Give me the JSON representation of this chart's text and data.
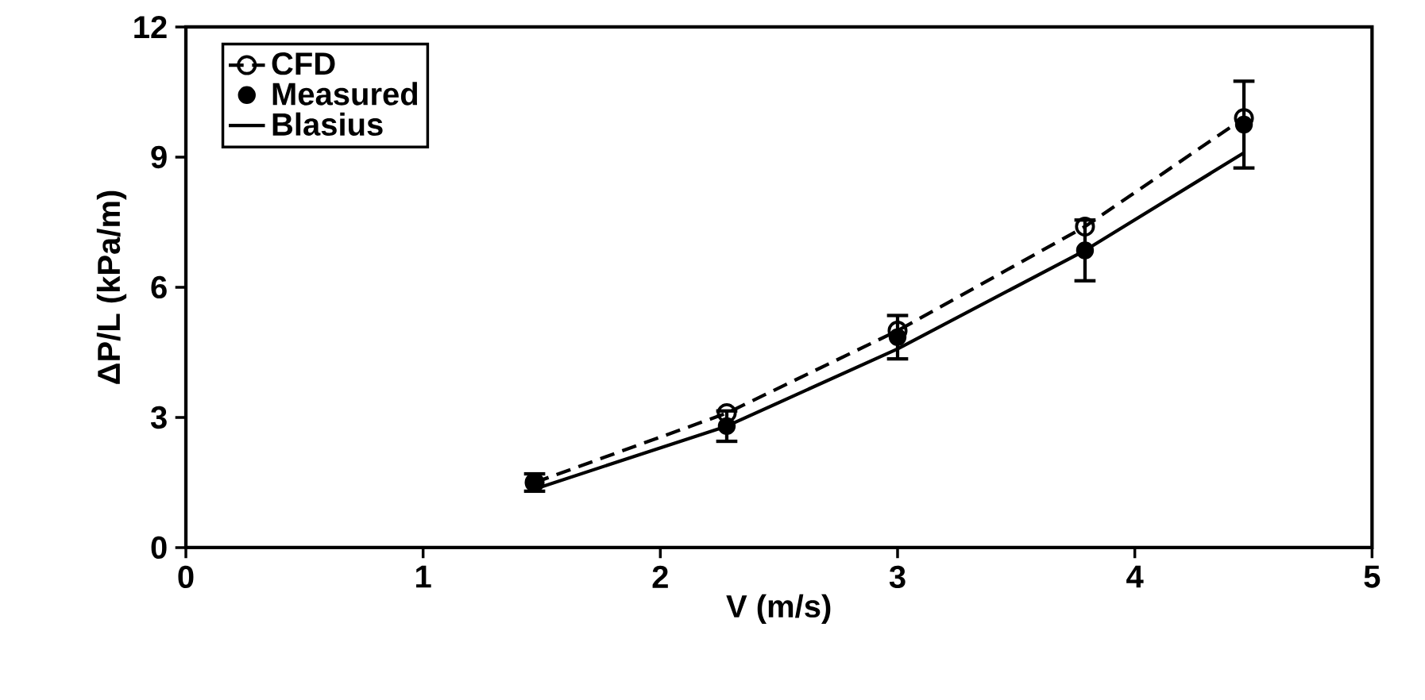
{
  "chart_data": {
    "type": "line",
    "xlabel": "V (m/s)",
    "ylabel": "ΔP/L (kPa/m)",
    "xlim": [
      0,
      5
    ],
    "xticks": [
      0,
      1,
      2,
      3,
      4,
      5
    ],
    "ylim": [
      0,
      12
    ],
    "yticks": [
      0,
      3,
      6,
      9,
      12
    ],
    "grid": false,
    "legend": "top left",
    "x": [
      1.47,
      2.28,
      3.0,
      3.79,
      4.46
    ],
    "series": [
      {
        "name": "CFD",
        "color": "#000000",
        "values": [
          1.5,
          3.1,
          5.0,
          7.4,
          9.9
        ],
        "marker": "circle",
        "line_style": "dashed"
      },
      {
        "name": "Measured",
        "type": "scatter",
        "color": "#000000",
        "values": [
          1.5,
          2.8,
          4.85,
          6.85,
          9.75
        ],
        "marker": "circle",
        "errors": [
          0.2,
          0.35,
          0.5,
          0.7,
          1.0
        ]
      },
      {
        "name": "Blasius",
        "color": "#000000",
        "values": [
          1.35,
          2.8,
          4.58,
          6.85,
          9.1
        ],
        "marker": "none",
        "line_style": "solid"
      }
    ]
  }
}
